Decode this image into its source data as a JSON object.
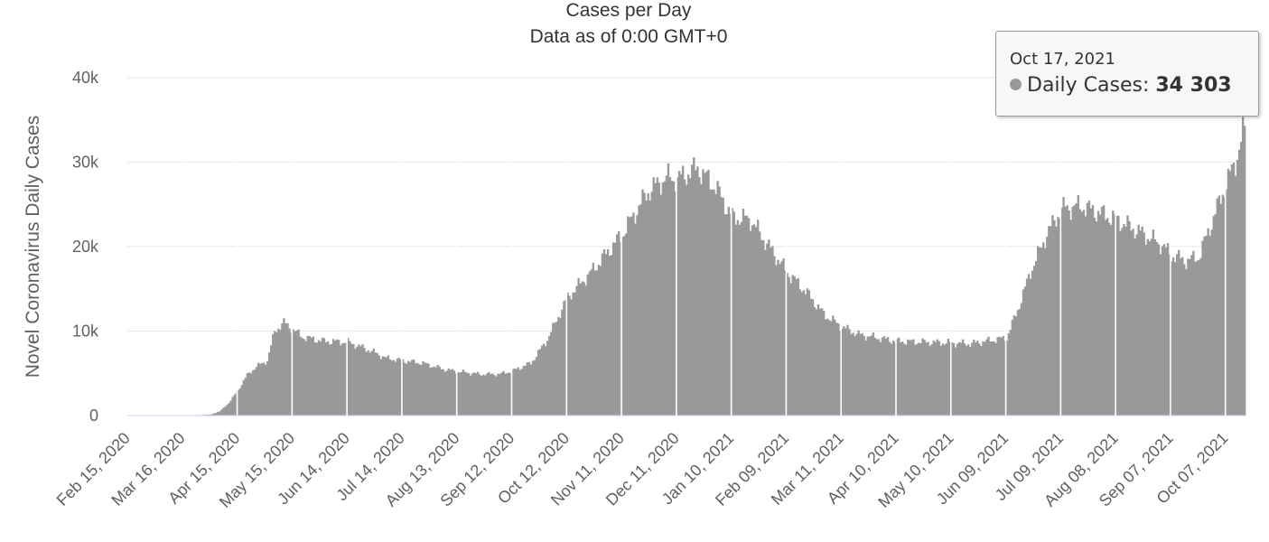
{
  "chart_data": {
    "type": "bar",
    "title": "Cases per Day",
    "subtitle": "Data as of 0:00 GMT+0",
    "ylabel": "Novel Coronavirus Daily Cases",
    "ylim": [
      0,
      40000
    ],
    "yticks": [
      {
        "value": 0,
        "label": "0"
      },
      {
        "value": 10000,
        "label": "10k"
      },
      {
        "value": 20000,
        "label": "20k"
      },
      {
        "value": 30000,
        "label": "30k"
      },
      {
        "value": 40000,
        "label": "40k"
      }
    ],
    "x_start": "2020-02-15",
    "x_end": "2021-10-17",
    "xtick_labels": [
      "Feb 15, 2020",
      "Mar 16, 2020",
      "Apr 15, 2020",
      "May 15, 2020",
      "Jun 14, 2020",
      "Jul 14, 2020",
      "Aug 13, 2020",
      "Sep 12, 2020",
      "Oct 12, 2020",
      "Nov 11, 2020",
      "Dec 11, 2020",
      "Jan 10, 2021",
      "Feb 09, 2021",
      "Mar 11, 2021",
      "Apr 10, 2021",
      "May 10, 2021",
      "Jun 09, 2021",
      "Jul 09, 2021",
      "Aug 08, 2021",
      "Sep 07, 2021",
      "Oct 07, 2021"
    ],
    "series": [
      {
        "name": "Daily Cases",
        "color": "#999999",
        "points": [
          [
            "2020-02-15",
            0
          ],
          [
            "2020-03-16",
            20
          ],
          [
            "2020-03-31",
            100
          ],
          [
            "2020-04-05",
            500
          ],
          [
            "2020-04-10",
            1500
          ],
          [
            "2020-04-15",
            3000
          ],
          [
            "2020-04-20",
            4800
          ],
          [
            "2020-04-25",
            5800
          ],
          [
            "2020-05-01",
            6500
          ],
          [
            "2020-05-05",
            10000
          ],
          [
            "2020-05-10",
            11000
          ],
          [
            "2020-05-15",
            10200
          ],
          [
            "2020-05-20",
            9300
          ],
          [
            "2020-06-01",
            8800
          ],
          [
            "2020-06-14",
            8700
          ],
          [
            "2020-06-25",
            7800
          ],
          [
            "2020-07-05",
            6800
          ],
          [
            "2020-07-14",
            6500
          ],
          [
            "2020-07-25",
            6200
          ],
          [
            "2020-08-05",
            5500
          ],
          [
            "2020-08-13",
            5200
          ],
          [
            "2020-08-25",
            4900
          ],
          [
            "2020-09-05",
            4900
          ],
          [
            "2020-09-12",
            5300
          ],
          [
            "2020-09-22",
            6200
          ],
          [
            "2020-10-01",
            9000
          ],
          [
            "2020-10-12",
            14000
          ],
          [
            "2020-10-25",
            17000
          ],
          [
            "2020-11-11",
            21500
          ],
          [
            "2020-11-25",
            26500
          ],
          [
            "2020-12-05",
            28200
          ],
          [
            "2020-12-11",
            28000
          ],
          [
            "2020-12-22",
            29300
          ],
          [
            "2021-01-01",
            27000
          ],
          [
            "2021-01-10",
            23500
          ],
          [
            "2021-01-20",
            23200
          ],
          [
            "2021-01-30",
            20000
          ],
          [
            "2021-02-09",
            17000
          ],
          [
            "2021-02-20",
            14500
          ],
          [
            "2021-03-01",
            12000
          ],
          [
            "2021-03-11",
            10500
          ],
          [
            "2021-03-20",
            9600
          ],
          [
            "2021-04-10",
            8800
          ],
          [
            "2021-05-10",
            8600
          ],
          [
            "2021-05-20",
            8500
          ],
          [
            "2021-06-09",
            9200
          ],
          [
            "2021-06-15",
            12500
          ],
          [
            "2021-06-22",
            17000
          ],
          [
            "2021-07-01",
            21500
          ],
          [
            "2021-07-09",
            24500
          ],
          [
            "2021-07-20",
            24800
          ],
          [
            "2021-08-08",
            23200
          ],
          [
            "2021-08-20",
            21800
          ],
          [
            "2021-09-01",
            20300
          ],
          [
            "2021-09-07",
            19000
          ],
          [
            "2021-09-15",
            18300
          ],
          [
            "2021-09-22",
            18800
          ],
          [
            "2021-10-01",
            24000
          ],
          [
            "2021-10-07",
            27500
          ],
          [
            "2021-10-12",
            30000
          ],
          [
            "2021-10-15",
            32500
          ],
          [
            "2021-10-17",
            34303
          ]
        ]
      }
    ]
  },
  "tooltip": {
    "date": "Oct 17, 2021",
    "series_label": "Daily Cases",
    "value": "34 303"
  }
}
